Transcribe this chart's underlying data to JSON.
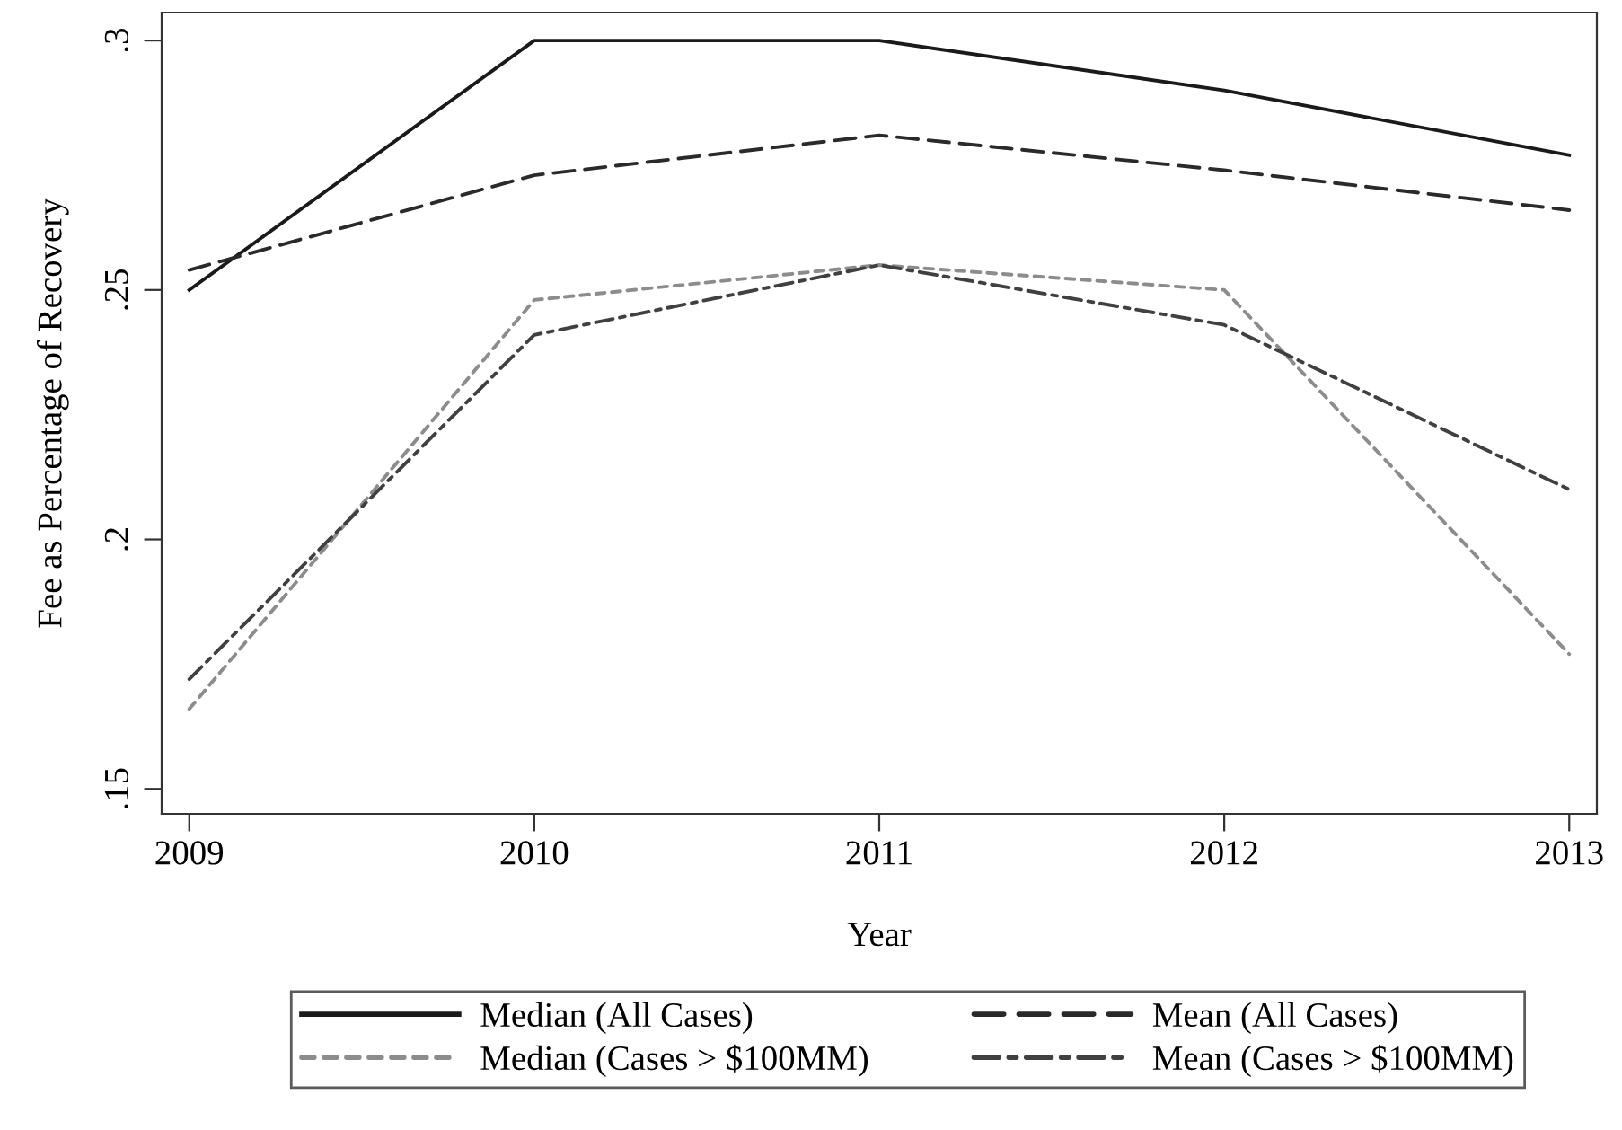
{
  "chart_data": {
    "type": "line",
    "xlabel": "Year",
    "ylabel": "Fee as Percentage of Recovery",
    "x": [
      2009,
      2010,
      2011,
      2012,
      2013
    ],
    "series": [
      {
        "name": "Median (All Cases)",
        "color": "#1a1a1a",
        "line_style": "solid",
        "values": [
          0.25,
          0.3,
          0.3,
          0.29,
          0.277
        ]
      },
      {
        "name": "Mean (All Cases)",
        "color": "#2a2a2a",
        "line_style": "dashed",
        "values": [
          0.254,
          0.273,
          0.281,
          0.274,
          0.266
        ]
      },
      {
        "name": "Median (Cases > $100MM)",
        "color": "#8c8c8c",
        "line_style": "dotted",
        "values": [
          0.166,
          0.248,
          0.255,
          0.25,
          0.177
        ]
      },
      {
        "name": "Mean (Cases > $100MM)",
        "color": "#404040",
        "line_style": "dashdot",
        "values": [
          0.172,
          0.241,
          0.255,
          0.243,
          0.21
        ]
      }
    ],
    "xlim": [
      2008.92,
      2013.08
    ],
    "xticks": [
      2009,
      2010,
      2011,
      2012,
      2013
    ],
    "ylim": [
      0.145,
      0.3056
    ],
    "yticks": [
      {
        "value": 0.15,
        "label": ".15"
      },
      {
        "value": 0.2,
        "label": ".2"
      },
      {
        "value": 0.25,
        "label": ".25"
      },
      {
        "value": 0.3,
        "label": ".3"
      }
    ],
    "grid": false,
    "legend": "bottom",
    "marker": "none"
  }
}
